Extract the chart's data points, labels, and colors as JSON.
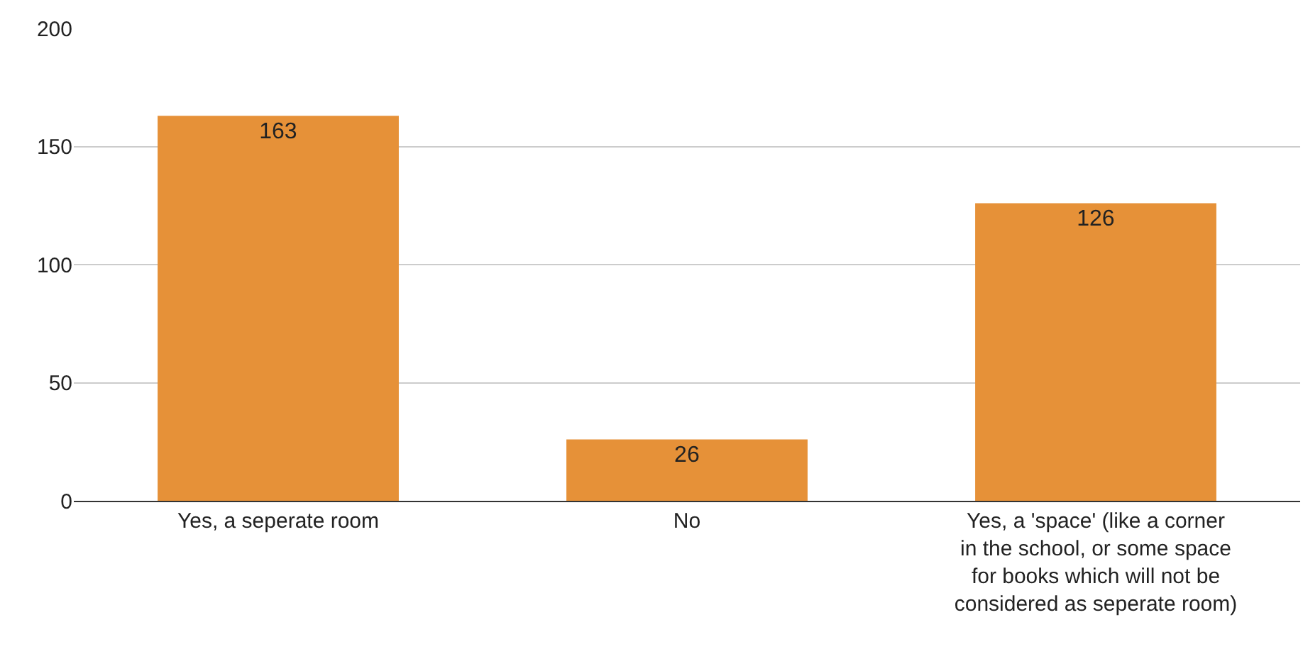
{
  "chart_data": {
    "type": "bar",
    "categories": [
      "Yes, a seperate room",
      "No",
      "Yes, a 'space' (like a corner in the school, or some space for books which will not be considered as seperate room)"
    ],
    "values": [
      163,
      26,
      126
    ],
    "color": "#e69138",
    "ylim": [
      0,
      200
    ],
    "yticks": [
      0,
      50,
      100,
      150,
      200
    ],
    "grid": "y",
    "data_labels": true
  }
}
